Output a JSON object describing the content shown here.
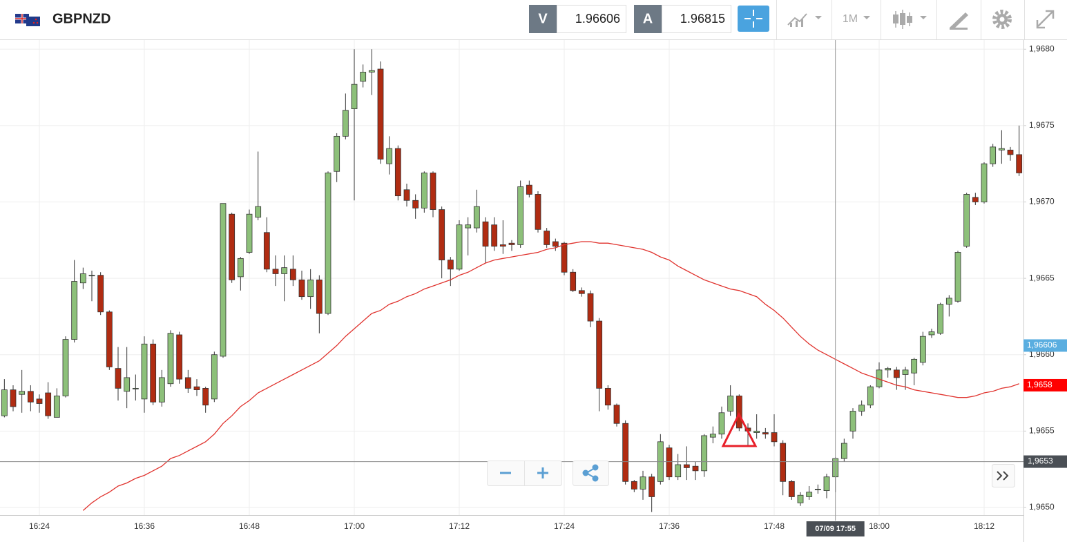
{
  "header": {
    "symbol": "GBPNZD",
    "bid_label": "V",
    "bid": 1.96606,
    "ask_label": "A",
    "ask": 1.96815,
    "timeframe": "1M"
  },
  "chart_data": {
    "type": "candlestick",
    "categories": [
      null,
      null,
      null,
      null,
      "16:24",
      null,
      null,
      null,
      null,
      null,
      null,
      null,
      null,
      null,
      null,
      null,
      "16:36",
      null,
      null,
      null,
      null,
      null,
      null,
      null,
      null,
      null,
      null,
      null,
      "16:48",
      null,
      null,
      null,
      null,
      null,
      null,
      null,
      null,
      null,
      null,
      null,
      "17:00",
      null,
      null,
      null,
      null,
      null,
      null,
      null,
      null,
      null,
      null,
      null,
      "17:12",
      null,
      null,
      null,
      null,
      null,
      null,
      null,
      null,
      null,
      null,
      null,
      "17:24",
      null,
      null,
      null,
      null,
      null,
      null,
      null,
      null,
      null,
      null,
      null,
      "17:36",
      null,
      null,
      null,
      null,
      null,
      null,
      null,
      null,
      null,
      null,
      null,
      "17:48",
      null,
      null,
      null,
      null,
      null,
      null,
      null,
      null,
      null,
      null,
      null,
      "18:00",
      null,
      null,
      null,
      null,
      null,
      null,
      null,
      null,
      null,
      null,
      null,
      "18:12",
      null,
      null,
      null,
      null
    ],
    "open": [
      1.9656,
      1.96577,
      1.96574,
      1.96576,
      1.96571,
      1.96575,
      1.96559,
      1.96573,
      1.9661,
      1.96647,
      1.96652,
      1.96652,
      1.96628,
      1.96591,
      1.96576,
      1.96578,
      1.96571,
      1.96607,
      1.96569,
      1.96581,
      1.96613,
      1.96585,
      1.96579,
      1.96578,
      1.96571,
      1.96599,
      1.96692,
      1.96651,
      1.96667,
      1.9669,
      1.9668,
      1.96656,
      1.96653,
      1.96656,
      1.96649,
      1.96638,
      1.96649,
      1.96627,
      1.9672,
      1.96743,
      1.96761,
      1.96779,
      1.96785,
      1.96787,
      1.96725,
      1.96735,
      1.96708,
      1.96701,
      1.96696,
      1.96719,
      1.96695,
      1.96662,
      1.96656,
      1.96683,
      1.96683,
      1.96687,
      1.96685,
      1.96672,
      1.96673,
      1.96672,
      1.96711,
      1.96705,
      1.96681,
      1.96674,
      1.96673,
      1.96654,
      1.96642,
      1.9664,
      1.96622,
      1.96578,
      1.96567,
      1.96555,
      1.96517,
      1.96512,
      1.9652,
      1.96517,
      1.96539,
      1.9652,
      1.96528,
      1.96527,
      1.96524,
      1.96546,
      1.96548,
      1.96563,
      1.96573,
      1.96552,
      1.96549,
      1.96549,
      1.96549,
      1.96542,
      1.96517,
      1.96503,
      1.96507,
      1.96512,
      1.96511,
      1.9652,
      1.96532,
      1.9655,
      1.96563,
      1.96567,
      1.96579,
      1.9659,
      1.9659,
      1.96587,
      1.96588,
      1.96595,
      1.96613,
      1.96614,
      1.96633,
      1.96635,
      1.96671,
      1.96703,
      1.967,
      1.96725,
      1.96734,
      1.96734,
      1.96731
    ],
    "high": [
      1.96584,
      1.9658,
      1.9659,
      1.9658,
      1.96574,
      1.96582,
      1.96578,
      1.96612,
      1.96662,
      1.96657,
      1.96655,
      1.96654,
      1.96629,
      1.96605,
      1.96605,
      1.96587,
      1.96612,
      1.9661,
      1.9659,
      1.96616,
      1.96615,
      1.9659,
      1.96584,
      1.96579,
      1.96602,
      1.96699,
      1.96693,
      1.96664,
      1.96695,
      1.96733,
      1.9669,
      1.96665,
      1.96665,
      1.96665,
      1.96655,
      1.96656,
      1.96652,
      1.9672,
      1.96745,
      1.96771,
      1.968,
      1.9679,
      1.968,
      1.96792,
      1.96743,
      1.96737,
      1.96712,
      1.96705,
      1.9672,
      1.9672,
      1.96697,
      1.96664,
      1.96688,
      1.9669,
      1.96708,
      1.9669,
      1.9669,
      1.96688,
      1.96675,
      1.96714,
      1.96714,
      1.96707,
      1.96683,
      1.96676,
      1.96674,
      1.96656,
      1.96644,
      1.96642,
      1.96624,
      1.9658,
      1.96568,
      1.96557,
      1.96518,
      1.96524,
      1.96522,
      1.96548,
      1.96541,
      1.96535,
      1.9654,
      1.9653,
      1.96548,
      1.96553,
      1.96566,
      1.9658,
      1.96574,
      1.96555,
      1.96561,
      1.96552,
      1.96561,
      1.96544,
      1.96518,
      1.9651,
      1.96514,
      1.96515,
      1.96522,
      1.96533,
      1.96545,
      1.96565,
      1.9657,
      1.9658,
      1.96595,
      1.96592,
      1.96592,
      1.96592,
      1.96598,
      1.96615,
      1.96617,
      1.96634,
      1.96639,
      1.96668,
      1.96706,
      1.96706,
      1.96726,
      1.96738,
      1.96747,
      1.96736,
      1.9675
    ],
    "low": [
      1.96559,
      1.96563,
      1.96562,
      1.96563,
      1.96562,
      1.96558,
      1.96559,
      1.96572,
      1.96608,
      1.96643,
      1.96635,
      1.96626,
      1.9659,
      1.9657,
      1.96565,
      1.9657,
      1.96562,
      1.96567,
      1.96566,
      1.96579,
      1.96581,
      1.96575,
      1.96573,
      1.96562,
      1.96569,
      1.96598,
      1.96647,
      1.96642,
      1.96666,
      1.96688,
      1.96654,
      1.96645,
      1.96635,
      1.96645,
      1.96636,
      1.9663,
      1.96614,
      1.96626,
      1.96713,
      1.96741,
      1.96701,
      1.96775,
      1.9677,
      1.96725,
      1.96718,
      1.96701,
      1.96697,
      1.96689,
      1.96693,
      1.9669,
      1.9665,
      1.96645,
      1.96655,
      1.96665,
      1.9668,
      1.9666,
      1.96668,
      1.96666,
      1.96668,
      1.9667,
      1.96703,
      1.9668,
      1.9667,
      1.96668,
      1.96652,
      1.96641,
      1.96638,
      1.96618,
      1.96563,
      1.96564,
      1.96553,
      1.96515,
      1.9651,
      1.96505,
      1.96497,
      1.96515,
      1.96518,
      1.96518,
      1.96518,
      1.96518,
      1.9652,
      1.96542,
      1.96545,
      1.9656,
      1.9655,
      1.9654,
      1.96545,
      1.96545,
      1.9654,
      1.96508,
      1.96505,
      1.96501,
      1.96505,
      1.96509,
      1.96506,
      1.9651,
      1.9653,
      1.96545,
      1.9656,
      1.96565,
      1.96578,
      1.96585,
      1.96577,
      1.96577,
      1.9658,
      1.96593,
      1.96611,
      1.96613,
      1.96625,
      1.96634,
      1.9667,
      1.96698,
      1.96699,
      1.96723,
      1.96725,
      1.96727,
      1.96717
    ],
    "close": [
      1.96577,
      1.96566,
      1.96576,
      1.96569,
      1.96568,
      1.9656,
      1.96573,
      1.9661,
      1.96648,
      1.96653,
      1.96652,
      1.96628,
      1.96592,
      1.96578,
      1.96585,
      1.96578,
      1.96607,
      1.96569,
      1.96585,
      1.96614,
      1.96584,
      1.96578,
      1.96577,
      1.96567,
      1.966,
      1.96699,
      1.96649,
      1.96663,
      1.96692,
      1.96697,
      1.96656,
      1.96653,
      1.96657,
      1.96649,
      1.96638,
      1.96649,
      1.96627,
      1.96719,
      1.96743,
      1.9676,
      1.96777,
      1.96785,
      1.96786,
      1.96728,
      1.96735,
      1.96704,
      1.96701,
      1.96696,
      1.96719,
      1.96695,
      1.96662,
      1.96656,
      1.96685,
      1.96685,
      1.96697,
      1.96671,
      1.96671,
      1.96671,
      1.96672,
      1.9671,
      1.96705,
      1.96682,
      1.96672,
      1.96671,
      1.96654,
      1.96642,
      1.9664,
      1.96622,
      1.96578,
      1.96567,
      1.96555,
      1.96517,
      1.96512,
      1.9652,
      1.96507,
      1.96543,
      1.9652,
      1.96528,
      1.96526,
      1.96524,
      1.96547,
      1.96548,
      1.96562,
      1.96573,
      1.96552,
      1.9655,
      1.9655,
      1.96548,
      1.96543,
      1.96517,
      1.96507,
      1.96508,
      1.9651,
      1.96512,
      1.9652,
      1.96532,
      1.96542,
      1.96563,
      1.96567,
      1.96579,
      1.9659,
      1.96591,
      1.96585,
      1.9659,
      1.96597,
      1.96612,
      1.96615,
      1.96633,
      1.96637,
      1.96667,
      1.96705,
      1.967,
      1.96725,
      1.96736,
      1.96735,
      1.96731,
      1.96719
    ],
    "up_color": "#8dc07a",
    "down_color": "#b02c12",
    "ma": {
      "color": "#e0332e",
      "values": [
        null,
        null,
        null,
        null,
        null,
        null,
        null,
        null,
        null,
        1.96498,
        1.96503,
        1.96507,
        1.9651,
        1.96514,
        1.96516,
        1.96519,
        1.96521,
        1.96524,
        1.96527,
        1.96532,
        1.96534,
        1.96537,
        1.9654,
        1.96543,
        1.96548,
        1.96555,
        1.9656,
        1.96566,
        1.9657,
        1.96575,
        1.96578,
        1.96581,
        1.96584,
        1.96587,
        1.9659,
        1.96593,
        1.96596,
        1.96601,
        1.96606,
        1.96612,
        1.96617,
        1.96622,
        1.96627,
        1.96629,
        1.96633,
        1.96635,
        1.96638,
        1.9664,
        1.96643,
        1.96645,
        1.96647,
        1.96649,
        1.96652,
        1.96654,
        1.96657,
        1.9666,
        1.96662,
        1.96663,
        1.96664,
        1.96665,
        1.96666,
        1.96667,
        1.96669,
        1.9667,
        1.96672,
        1.96673,
        1.96674,
        1.96674,
        1.96673,
        1.96673,
        1.96672,
        1.96671,
        1.9667,
        1.96669,
        1.96667,
        1.96664,
        1.96662,
        1.96658,
        1.96655,
        1.96652,
        1.96649,
        1.96647,
        1.96645,
        1.96643,
        1.96642,
        1.9664,
        1.96638,
        1.96633,
        1.96629,
        1.96624,
        1.96618,
        1.96612,
        1.96607,
        1.96603,
        1.966,
        1.96597,
        1.96594,
        1.96591,
        1.96588,
        1.96586,
        1.96584,
        1.96582,
        1.9658,
        1.96579,
        1.96577,
        1.96576,
        1.96575,
        1.96574,
        1.96573,
        1.96572,
        1.96572,
        1.96573,
        1.96575,
        1.96576,
        1.96578,
        1.96579,
        1.96581
      ]
    },
    "ylim": [
      1.96495,
      1.96806
    ],
    "yticks": [
      {
        "value": 1.965,
        "label": "1,9650"
      },
      {
        "value": 1.9655,
        "label": "1,9655"
      },
      {
        "value": 1.966,
        "label": "1,9660"
      },
      {
        "value": 1.9665,
        "label": "1,9665"
      },
      {
        "value": 1.967,
        "label": "1,9670"
      },
      {
        "value": 1.9675,
        "label": "1,9675"
      },
      {
        "value": 1.968,
        "label": "1,9680"
      }
    ],
    "grid": true,
    "price_labels": [
      {
        "value": 1.96606,
        "label": "1,96606",
        "color": "#5aaee0"
      },
      {
        "value": 1.9658,
        "label": "1,9658",
        "color": "#ff0000"
      }
    ],
    "crosshair": {
      "value": 1.9653,
      "label": "1,9653",
      "x_index": 95,
      "x_label": "07/09 17:55"
    }
  }
}
